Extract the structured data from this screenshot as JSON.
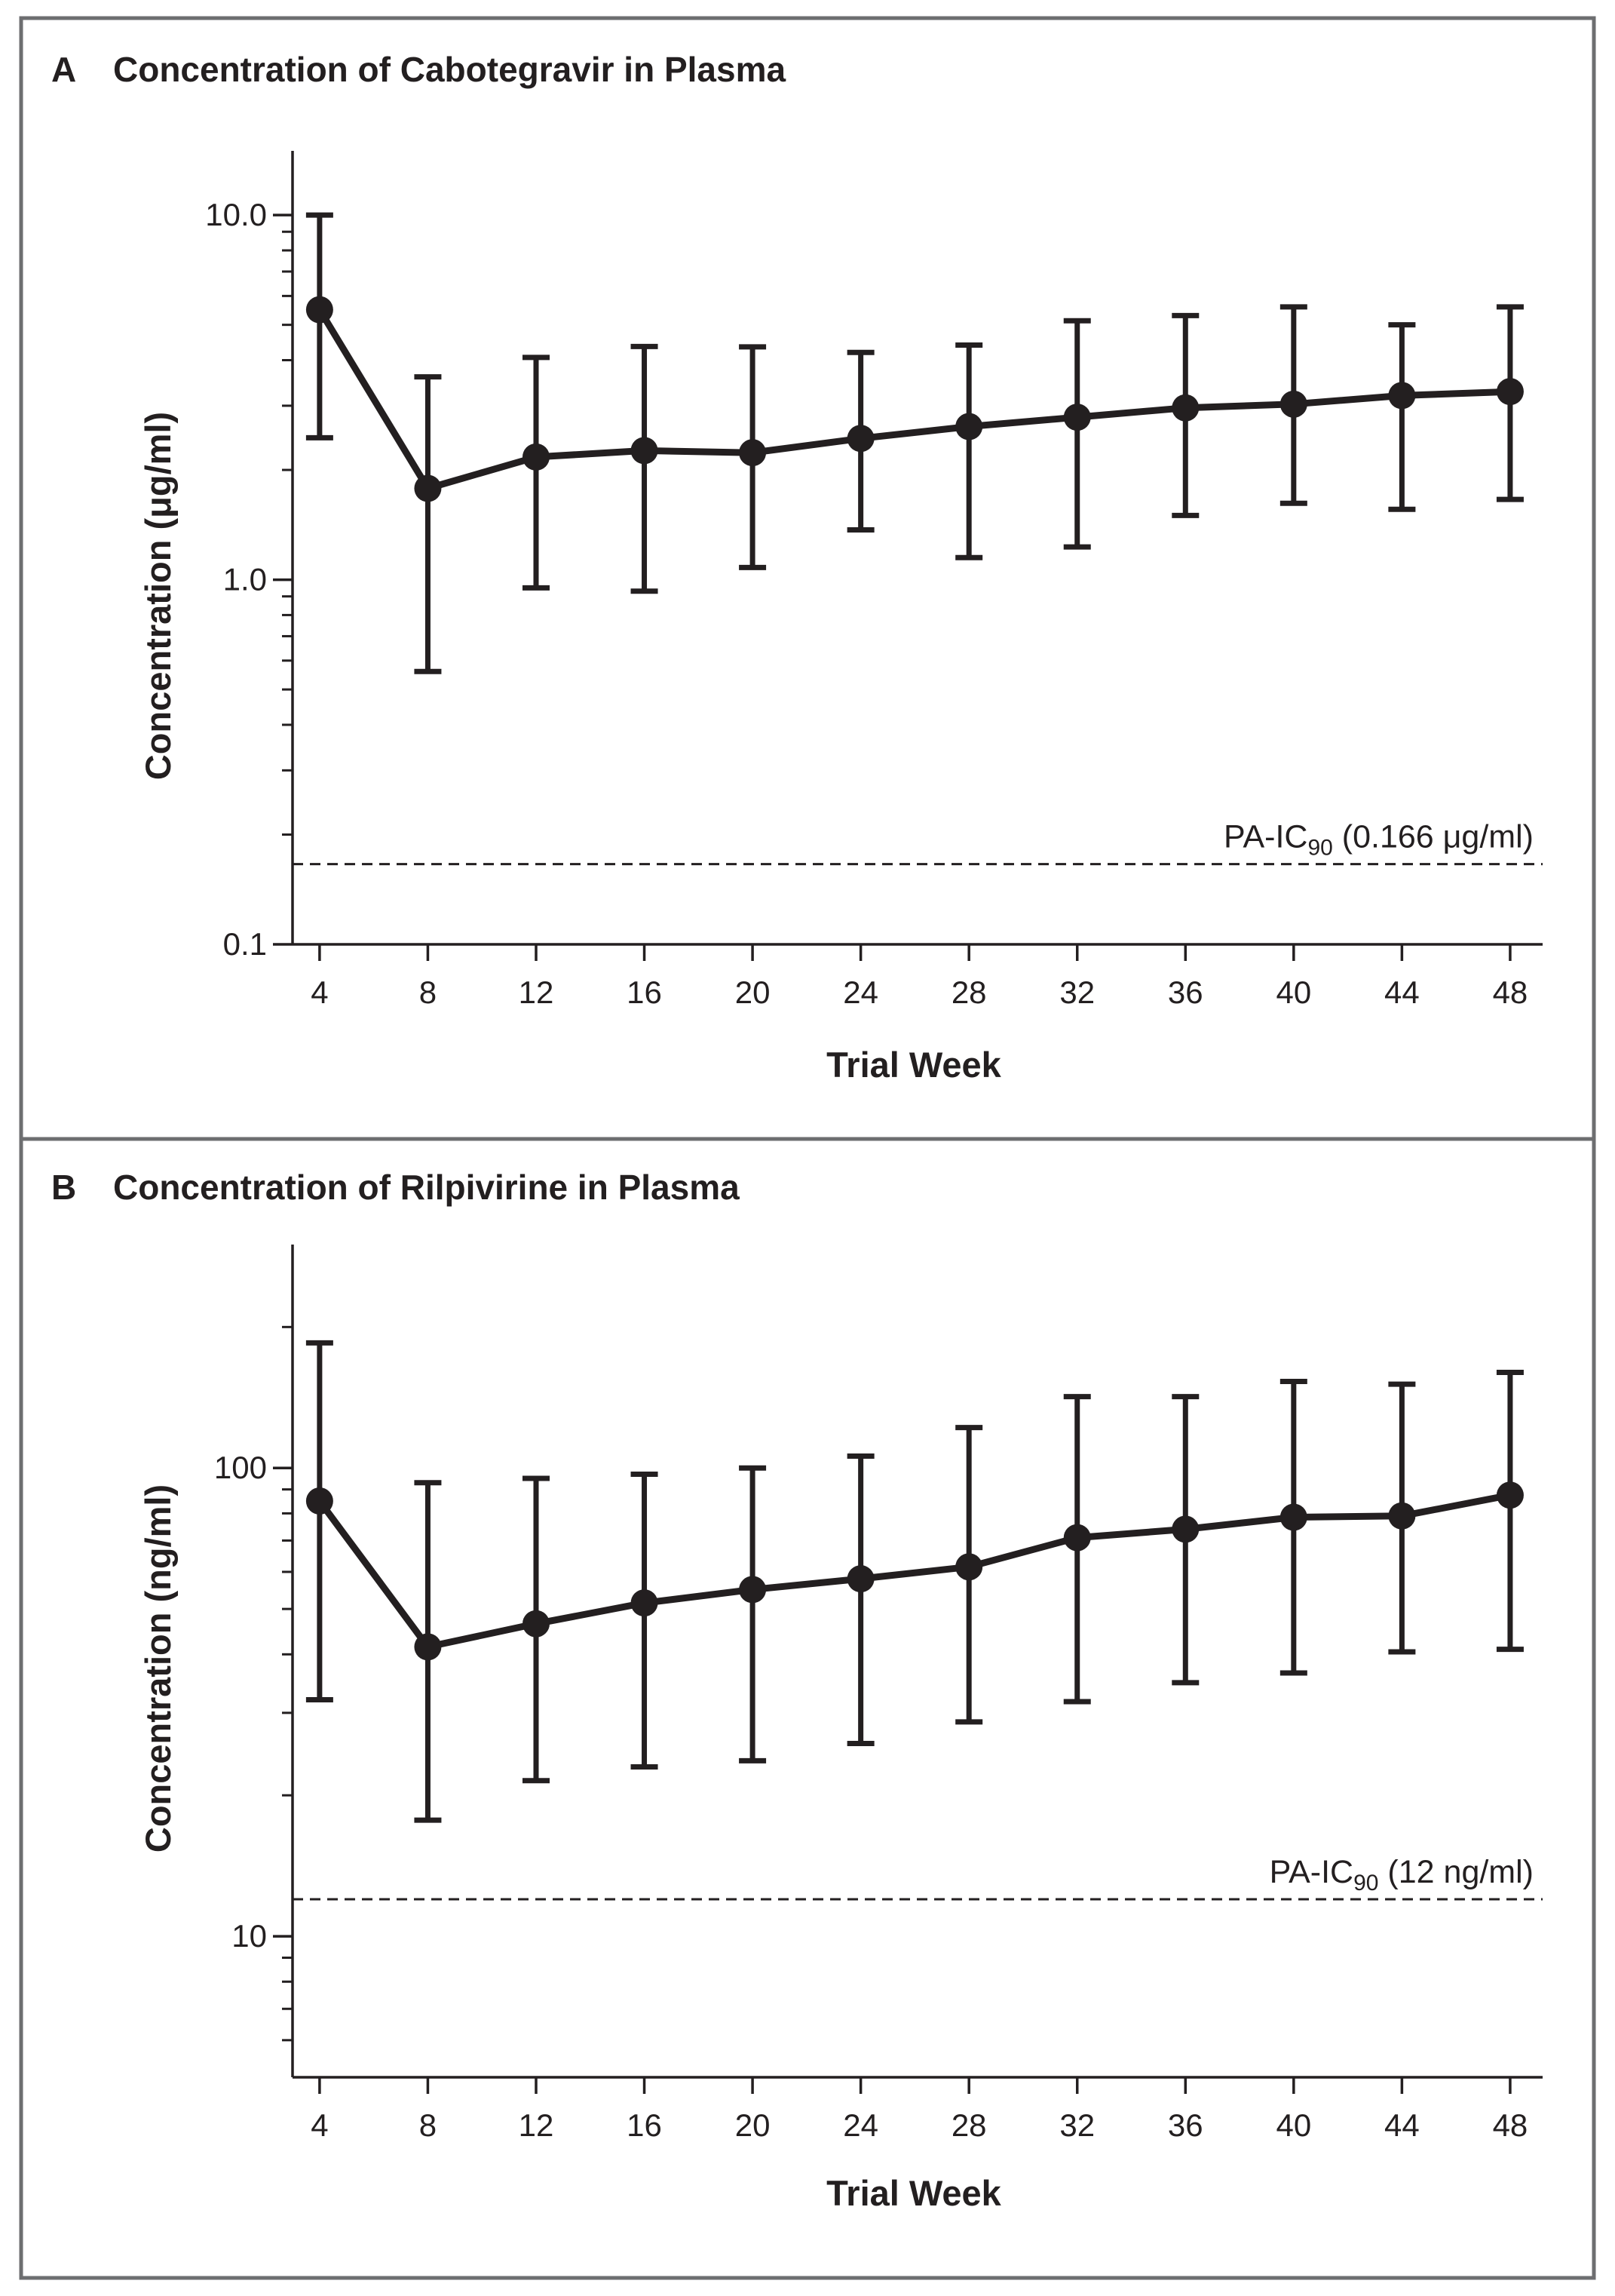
{
  "chart_data": [
    {
      "id": "A",
      "type": "line",
      "panel_letter": "A",
      "title": "Concentration of Cabotegravir in Plasma",
      "xlabel": "Trial Week",
      "ylabel": "Concentration (μg/ml)",
      "yscale": "log",
      "ylim": [
        0.1,
        15
      ],
      "xlim": [
        3,
        49.2
      ],
      "yticks": [
        {
          "value": 10,
          "label": "10.0"
        },
        {
          "value": 1,
          "label": "1.0"
        },
        {
          "value": 0.1,
          "label": "0.1"
        }
      ],
      "y_minor_ticks": [
        0.2,
        0.3,
        0.4,
        0.5,
        0.6,
        0.7,
        0.8,
        0.9,
        2,
        3,
        4,
        5,
        6,
        7,
        8,
        9
      ],
      "x": [
        4,
        8,
        12,
        16,
        20,
        24,
        28,
        32,
        36,
        40,
        44,
        48
      ],
      "x_tick_labels": [
        "4",
        "8",
        "12",
        "16",
        "20",
        "24",
        "28",
        "32",
        "36",
        "40",
        "44",
        "48"
      ],
      "series": [
        {
          "name": "Cabotegravir",
          "values": [
            5.5,
            1.78,
            2.17,
            2.26,
            2.23,
            2.44,
            2.63,
            2.79,
            2.96,
            3.03,
            3.2,
            3.28
          ],
          "err_low": [
            2.45,
            0.56,
            0.95,
            0.93,
            1.08,
            1.37,
            1.15,
            1.23,
            1.5,
            1.62,
            1.56,
            1.66
          ],
          "err_high": [
            10.0,
            3.6,
            4.07,
            4.36,
            4.35,
            4.2,
            4.4,
            5.13,
            5.3,
            5.6,
            5.0,
            5.6
          ]
        }
      ],
      "reference": {
        "value": 0.166,
        "label_prefix": "PA-IC",
        "label_sub": "90",
        "label_suffix": " (0.166 μg/ml)"
      }
    },
    {
      "id": "B",
      "type": "line",
      "panel_letter": "B",
      "title": "Concentration of Rilpivirine in Plasma",
      "xlabel": "Trial Week",
      "ylabel": "Concentration (ng/ml)",
      "yscale": "log",
      "ylim": [
        5,
        300
      ],
      "xlim": [
        3,
        49.2
      ],
      "yticks": [
        {
          "value": 100,
          "label": "100"
        },
        {
          "value": 10,
          "label": "10"
        }
      ],
      "y_minor_ticks": [
        6,
        7,
        8,
        9,
        20,
        30,
        40,
        50,
        60,
        70,
        80,
        90,
        200
      ],
      "x": [
        4,
        8,
        12,
        16,
        20,
        24,
        28,
        32,
        36,
        40,
        44,
        48
      ],
      "x_tick_labels": [
        "4",
        "8",
        "12",
        "16",
        "20",
        "24",
        "28",
        "32",
        "36",
        "40",
        "44",
        "48"
      ],
      "series": [
        {
          "name": "Rilpivirine",
          "values": [
            85,
            41.5,
            46.5,
            51.5,
            55,
            58,
            61.5,
            71,
            74,
            78.5,
            79,
            87.5
          ],
          "err_low": [
            32,
            17.7,
            21.5,
            23,
            23.7,
            25.8,
            28.7,
            31.7,
            34.8,
            36.5,
            40.5,
            41
          ],
          "err_high": [
            185,
            93,
            95,
            97,
            100,
            106,
            122,
            142,
            142,
            153,
            151,
            160
          ]
        }
      ],
      "reference": {
        "value": 12,
        "label_prefix": "PA-IC",
        "label_sub": "90",
        "label_suffix": " (12 ng/ml)"
      }
    }
  ]
}
